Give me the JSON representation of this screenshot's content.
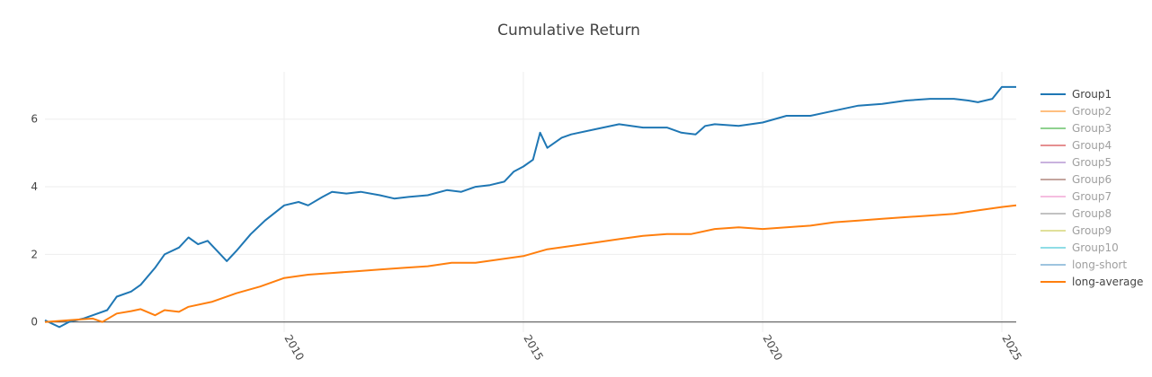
{
  "chart_data": {
    "type": "line",
    "title": "Cumulative Return",
    "xlabel": "",
    "ylabel": "",
    "xlim": [
      2005.0,
      2025.3
    ],
    "ylim": [
      -0.3,
      7.4
    ],
    "x_ticks": [
      2010,
      2015,
      2020,
      2025
    ],
    "x_tick_labels": [
      "2010",
      "2015",
      "2020",
      "2025"
    ],
    "y_ticks": [
      0,
      2,
      4,
      6
    ],
    "y_tick_labels": [
      "0",
      "2",
      "4",
      "6"
    ],
    "grid": true,
    "legend_position": "right",
    "series": [
      {
        "name": "Group1",
        "color": "#1f77b4",
        "visible": true,
        "x": [
          2005.0,
          2005.3,
          2005.5,
          2005.8,
          2006.0,
          2006.3,
          2006.5,
          2006.8,
          2007.0,
          2007.3,
          2007.5,
          2007.8,
          2008.0,
          2008.2,
          2008.4,
          2008.6,
          2008.8,
          2009.0,
          2009.3,
          2009.6,
          2010.0,
          2010.3,
          2010.5,
          2010.8,
          2011.0,
          2011.3,
          2011.6,
          2012.0,
          2012.3,
          2012.6,
          2013.0,
          2013.4,
          2013.7,
          2014.0,
          2014.3,
          2014.6,
          2014.8,
          2015.0,
          2015.2,
          2015.35,
          2015.5,
          2015.8,
          2016.0,
          2016.5,
          2017.0,
          2017.5,
          2018.0,
          2018.3,
          2018.6,
          2018.8,
          2019.0,
          2019.5,
          2020.0,
          2020.5,
          2021.0,
          2021.5,
          2022.0,
          2022.5,
          2023.0,
          2023.5,
          2024.0,
          2024.3,
          2024.5,
          2024.8,
          2025.0,
          2025.3
        ],
        "y": [
          0.05,
          -0.15,
          0.0,
          0.1,
          0.2,
          0.35,
          0.75,
          0.9,
          1.1,
          1.6,
          2.0,
          2.2,
          2.5,
          2.3,
          2.4,
          2.1,
          1.8,
          2.1,
          2.6,
          3.0,
          3.45,
          3.55,
          3.45,
          3.7,
          3.85,
          3.8,
          3.85,
          3.75,
          3.65,
          3.7,
          3.75,
          3.9,
          3.85,
          4.0,
          4.05,
          4.15,
          4.45,
          4.6,
          4.8,
          5.6,
          5.15,
          5.45,
          5.55,
          5.7,
          5.85,
          5.75,
          5.75,
          5.6,
          5.55,
          5.8,
          5.85,
          5.8,
          5.9,
          6.1,
          6.1,
          6.25,
          6.4,
          6.45,
          6.55,
          6.6,
          6.6,
          6.55,
          6.5,
          6.6,
          6.95,
          6.95
        ]
      },
      {
        "name": "Group2",
        "color": "#ffbf80",
        "visible": false,
        "x": [],
        "y": []
      },
      {
        "name": "Group3",
        "color": "#8fd18f",
        "visible": false,
        "x": [],
        "y": []
      },
      {
        "name": "Group4",
        "color": "#e58f90",
        "visible": false,
        "x": [],
        "y": []
      },
      {
        "name": "Group5",
        "color": "#c9b2de",
        "visible": false,
        "x": [],
        "y": []
      },
      {
        "name": "Group6",
        "color": "#c4a59e",
        "visible": false,
        "x": [],
        "y": []
      },
      {
        "name": "Group7",
        "color": "#f5bde0",
        "visible": false,
        "x": [],
        "y": []
      },
      {
        "name": "Group8",
        "color": "#c2c2c2",
        "visible": false,
        "x": [],
        "y": []
      },
      {
        "name": "Group9",
        "color": "#e0e09a",
        "visible": false,
        "x": [],
        "y": []
      },
      {
        "name": "Group10",
        "color": "#8fdde6",
        "visible": false,
        "x": [],
        "y": []
      },
      {
        "name": "long-short",
        "color": "#9ec4df",
        "visible": false,
        "x": [],
        "y": []
      },
      {
        "name": "long-average",
        "color": "#ff7f0e",
        "visible": true,
        "x": [
          2005.0,
          2005.5,
          2006.0,
          2006.2,
          2006.5,
          2006.8,
          2007.0,
          2007.3,
          2007.5,
          2007.8,
          2008.0,
          2008.5,
          2009.0,
          2009.5,
          2010.0,
          2010.5,
          2011.0,
          2011.5,
          2012.0,
          2012.5,
          2013.0,
          2013.5,
          2014.0,
          2014.5,
          2015.0,
          2015.5,
          2016.0,
          2016.5,
          2017.0,
          2017.5,
          2018.0,
          2018.5,
          2019.0,
          2019.5,
          2020.0,
          2020.5,
          2021.0,
          2021.5,
          2022.0,
          2022.5,
          2023.0,
          2023.5,
          2024.0,
          2024.5,
          2025.0,
          2025.3
        ],
        "y": [
          0.0,
          0.05,
          0.1,
          0.0,
          0.25,
          0.32,
          0.38,
          0.2,
          0.35,
          0.3,
          0.45,
          0.6,
          0.85,
          1.05,
          1.3,
          1.4,
          1.45,
          1.5,
          1.55,
          1.6,
          1.65,
          1.75,
          1.75,
          1.85,
          1.95,
          2.15,
          2.25,
          2.35,
          2.45,
          2.55,
          2.6,
          2.6,
          2.75,
          2.8,
          2.75,
          2.8,
          2.85,
          2.95,
          3.0,
          3.05,
          3.1,
          3.15,
          3.2,
          3.3,
          3.4,
          3.45
        ]
      }
    ]
  }
}
